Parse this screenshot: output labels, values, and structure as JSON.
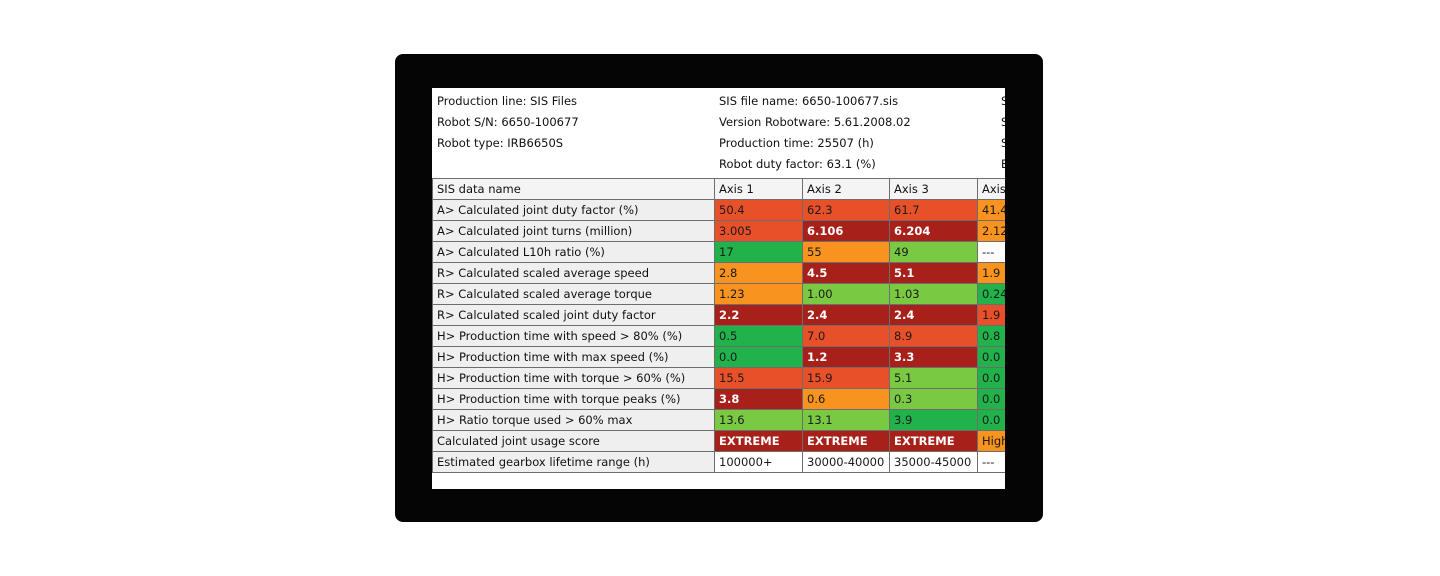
{
  "header": {
    "left": [
      "Production line: SIS Files",
      "Robot S/N: 6650-100677",
      "Robot type: IRB6650S"
    ],
    "middle": [
      "SIS file name: 6650-100677.sis",
      "Version Robotware: 5.61.2008.02",
      "Production time: 25507 (h)",
      "Robot duty factor: 63.1 (%)"
    ],
    "right_partial": [
      "S",
      "S",
      "S",
      "E"
    ]
  },
  "table": {
    "columns": [
      "SIS data name",
      "Axis 1",
      "Axis 2",
      "Axis 3",
      "Axis"
    ],
    "rows": [
      {
        "name": "A> Calculated joint duty factor (%)",
        "cells": [
          {
            "v": "50.4",
            "c": "red"
          },
          {
            "v": "62.3",
            "c": "red"
          },
          {
            "v": "61.7",
            "c": "red"
          },
          {
            "v": "41.4",
            "c": "orange"
          }
        ]
      },
      {
        "name": "A> Calculated joint turns (million)",
        "cells": [
          {
            "v": "3.005",
            "c": "red"
          },
          {
            "v": "6.106",
            "c": "dred",
            "b": true
          },
          {
            "v": "6.204",
            "c": "dred",
            "b": true
          },
          {
            "v": "2.12",
            "c": "orange"
          }
        ]
      },
      {
        "name": "A> Calculated L10h ratio (%)",
        "cells": [
          {
            "v": "17",
            "c": "green"
          },
          {
            "v": "55",
            "c": "orange"
          },
          {
            "v": "49",
            "c": "lgreen"
          },
          {
            "v": "---",
            "c": "white"
          }
        ]
      },
      {
        "name": "R> Calculated scaled average speed",
        "cells": [
          {
            "v": "2.8",
            "c": "orange"
          },
          {
            "v": "4.5",
            "c": "dred",
            "b": true
          },
          {
            "v": "5.1",
            "c": "dred",
            "b": true
          },
          {
            "v": "1.9",
            "c": "orange"
          }
        ]
      },
      {
        "name": "R> Calculated scaled average torque",
        "cells": [
          {
            "v": "1.23",
            "c": "orange"
          },
          {
            "v": "1.00",
            "c": "lgreen"
          },
          {
            "v": "1.03",
            "c": "lgreen"
          },
          {
            "v": "0.24",
            "c": "green"
          }
        ]
      },
      {
        "name": "R> Calculated scaled joint duty factor",
        "cells": [
          {
            "v": "2.2",
            "c": "dred",
            "b": true
          },
          {
            "v": "2.4",
            "c": "dred",
            "b": true
          },
          {
            "v": "2.4",
            "c": "dred",
            "b": true
          },
          {
            "v": "1.9",
            "c": "red"
          }
        ]
      },
      {
        "name": "H> Production time with speed > 80% (%)",
        "cells": [
          {
            "v": "0.5",
            "c": "green"
          },
          {
            "v": "7.0",
            "c": "red"
          },
          {
            "v": "8.9",
            "c": "red"
          },
          {
            "v": "0.8",
            "c": "green"
          }
        ]
      },
      {
        "name": "H> Production time with max speed (%)",
        "cells": [
          {
            "v": "0.0",
            "c": "green"
          },
          {
            "v": "1.2",
            "c": "dred",
            "b": true
          },
          {
            "v": "3.3",
            "c": "dred",
            "b": true
          },
          {
            "v": "0.0",
            "c": "green"
          }
        ]
      },
      {
        "name": "H> Production time with torque > 60% (%)",
        "cells": [
          {
            "v": "15.5",
            "c": "red"
          },
          {
            "v": "15.9",
            "c": "red"
          },
          {
            "v": "5.1",
            "c": "lgreen"
          },
          {
            "v": "0.0",
            "c": "green"
          }
        ]
      },
      {
        "name": "H> Production time with torque peaks (%)",
        "cells": [
          {
            "v": "3.8",
            "c": "dred",
            "b": true
          },
          {
            "v": "0.6",
            "c": "orange"
          },
          {
            "v": "0.3",
            "c": "lgreen"
          },
          {
            "v": "0.0",
            "c": "green"
          }
        ]
      },
      {
        "name": "H> Ratio torque used > 60% max",
        "cells": [
          {
            "v": "13.6",
            "c": "lgreen"
          },
          {
            "v": "13.1",
            "c": "lgreen"
          },
          {
            "v": "3.9",
            "c": "green"
          },
          {
            "v": "0.0",
            "c": "green"
          }
        ]
      },
      {
        "name": "Calculated joint usage score",
        "cells": [
          {
            "v": "EXTREME",
            "c": "dred",
            "b": true
          },
          {
            "v": "EXTREME",
            "c": "dred",
            "b": true
          },
          {
            "v": "EXTREME",
            "c": "dred",
            "b": true
          },
          {
            "v": "High",
            "c": "orange"
          }
        ]
      },
      {
        "name": "Estimated gearbox lifetime range (h)",
        "cells": [
          {
            "v": "100000+",
            "c": "white"
          },
          {
            "v": "30000-40000",
            "c": "white"
          },
          {
            "v": "35000-45000",
            "c": "white"
          },
          {
            "v": "---",
            "c": "white"
          }
        ]
      }
    ]
  },
  "colors": {
    "green": "#22b24c",
    "lgreen": "#7ac943",
    "orange": "#f7931e",
    "red": "#e8502a",
    "dred": "#a8201a",
    "white": "#ffffff",
    "bezel": "#050505"
  }
}
